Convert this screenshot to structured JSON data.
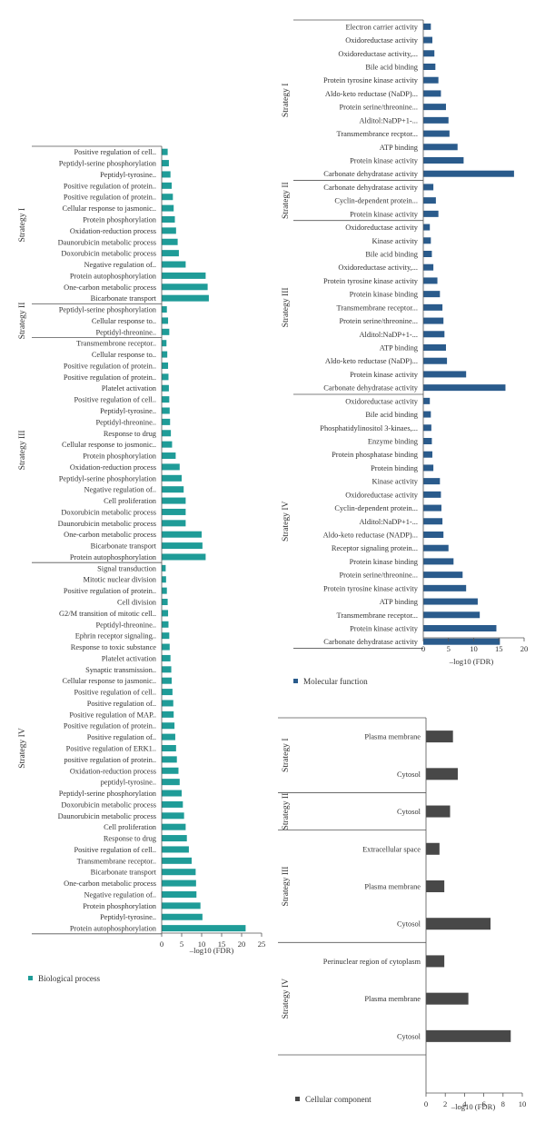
{
  "chart_data": [
    {
      "type": "bar",
      "orientation": "horizontal",
      "xlabel": "–log10 (FDR)",
      "xlim": [
        0,
        25
      ],
      "xticks": [
        0,
        5,
        10,
        15,
        20,
        25
      ],
      "legend": "Biological process",
      "color": "#1f9c98",
      "groups": [
        {
          "label": "Strategy I",
          "categories": [
            "Positive regulation of cell..",
            "Peptidyl-serine phosphorylation",
            "Peptidyl-tyrosine..",
            "Positive regulation of protein..",
            "Positive regulation of protein..",
            "Cellular response to jasmonic..",
            "Protein phosphorylation",
            "Oxidation-reduction process",
            "Daunorubicin metabolic process",
            "Doxorubicin metabolic process",
            "Negative regulation of..",
            "Protein autophosphorylation",
            "One-carbon metabolic process",
            "Bicarbonate transport"
          ],
          "values": [
            1.5,
            1.8,
            2.2,
            2.5,
            2.8,
            3.0,
            3.3,
            3.6,
            4.0,
            4.3,
            6.0,
            11.0,
            11.5,
            11.8
          ]
        },
        {
          "label": "Strategy II",
          "categories": [
            "Peptidyl-serine phosphorylation",
            "Cellular response to..",
            "Peptidyl-threonine.."
          ],
          "values": [
            1.3,
            1.6,
            1.9
          ]
        },
        {
          "label": "Strategy III",
          "categories": [
            "Transmembrone receptor..",
            "Cellular response to..",
            "Positive regulation of protein..",
            "Positive regulation of protein..",
            "Platelet activation",
            "Positive regulation of cell..",
            "Peptidyl-tyrosine..",
            "Peptidyl-threonine..",
            "Response to drug",
            "Cellular response to josmonic..",
            "Protein phosphorylation",
            "Oxidation-reduction process",
            "Peptidyl-serine phosphorylation",
            "Negative regulation of..",
            "Cell proliferation",
            "Doxorubicin metabolic process",
            "Daunorubicin metabolic process",
            "One-carbon metabolic process",
            "Bicarbonate transport",
            "Protein autophosphorylation"
          ],
          "values": [
            1.2,
            1.4,
            1.6,
            1.7,
            1.8,
            1.9,
            2.0,
            2.1,
            2.3,
            2.6,
            3.5,
            4.5,
            5.0,
            5.5,
            6.0,
            6.0,
            6.0,
            10.0,
            10.2,
            11.0
          ]
        },
        {
          "label": "Strategy IV",
          "categories": [
            "Signal transduction",
            "Mitotic nuclear division",
            "Positive regulation of protein..",
            "Cell division",
            "G2/M transition of mitotic cell..",
            "Peptidyl-threonine..",
            "Ephrin receptor signaling..",
            "Response to toxic substance",
            "Platelet activation",
            "Synaptic transmission..",
            "Cellular response to jasmonic..",
            "Positive regulation of cell..",
            "Positive regulation of..",
            "Positive regulation of MAP..",
            "Positive regulation of protein..",
            "Positive regulation of..",
            "Positive regulation of ERK1..",
            "positive regulation of protein..",
            "Oxidation-reduction process",
            "peptidyl-tyrosine..",
            "Peptidyl-serine phosphorylation",
            "Doxorubicin metabolic process",
            "Daunorubicin metabolic process",
            "Cell proliferation",
            "Response to drug",
            "Positive regulation of cell..",
            "Transmembrane receptor..",
            "Bicarbonate transport",
            "One-carbon metabolic process",
            "Negative regulation of..",
            "Protein phosphorylation",
            "Peptidyl-tyrosine..",
            "Protein autophosphorylation"
          ],
          "values": [
            1.0,
            1.1,
            1.3,
            1.5,
            1.6,
            1.7,
            1.9,
            2.0,
            2.2,
            2.4,
            2.5,
            2.7,
            2.9,
            3.0,
            3.2,
            3.4,
            3.6,
            3.8,
            4.2,
            4.5,
            5.0,
            5.3,
            5.6,
            6.0,
            6.3,
            6.8,
            7.5,
            8.5,
            8.6,
            8.7,
            9.7,
            10.2,
            21.0
          ]
        }
      ]
    },
    {
      "type": "bar",
      "orientation": "horizontal",
      "xlabel": "–log10 (FDR)",
      "xlim": [
        0,
        20
      ],
      "xticks": [
        0,
        5,
        10,
        15,
        20
      ],
      "legend": "Molecular function",
      "color": "#2a5b8c",
      "groups": [
        {
          "label": "Strategy I",
          "categories": [
            "Electron carrier activity",
            "Oxidoreductase activity",
            "Oxidoreductase activity,...",
            "Bile acid binding",
            "Protein tyrosine kinase activity",
            "Aldo-keto reductase (NaDP)...",
            "Protein serine/threonine...",
            "Alditol:NaDP+1-...",
            "Transmembrance recptor...",
            "ATP binding",
            "Protein kinase activity",
            "Carbonate dehydratase activity"
          ],
          "values": [
            1.5,
            1.8,
            2.2,
            2.4,
            3.0,
            3.5,
            4.5,
            5.0,
            5.2,
            6.8,
            8.0,
            18.0
          ]
        },
        {
          "label": "Strategy II",
          "categories": [
            "Carbonate dehydratase activity",
            "Cyclin-dependent protein...",
            "Protein kinase activity"
          ],
          "values": [
            2.0,
            2.5,
            3.0
          ]
        },
        {
          "label": "Strategy III",
          "categories": [
            "Oxidoreductase activity",
            "Kinase activity",
            "Bile acid binding",
            "Oxidoreductase activity,...",
            "Protein tyrosine kinase activity",
            "Protein kinase binding",
            "Transmembrane receptor...",
            "Protein serine/threonine...",
            "Alditol:NaDP+1-...",
            "ATP binding",
            "Aldo-keto reductase (NaDP)...",
            "Protein kinase activity",
            "Carbonate dehydratase activity"
          ],
          "values": [
            1.3,
            1.5,
            1.7,
            2.0,
            2.8,
            3.3,
            3.8,
            4.0,
            4.2,
            4.5,
            4.7,
            8.5,
            16.3
          ]
        },
        {
          "label": "Strategy IV",
          "categories": [
            "Oxidoreductase activity",
            "Bile acid binding",
            "Phosphatidylinositol 3-kinaes,...",
            "Enzyme binding",
            "Protein phosphatase binding",
            "Protein binding",
            "Kinase activity",
            "Oxidoreductase activity",
            "Cyclin-dependent protein...",
            "Alditol:NaDP+1-...",
            "Aldo-keto reductase (NADP)...",
            "Receptor signaling protein...",
            "Protein kinase binding",
            "Protein serine/threonine...",
            "Protein tyrosine kinase activity",
            "ATP binding",
            "Transmembrane receptor...",
            "Protein kinase activity",
            "Carbonate dehydratase activity"
          ],
          "values": [
            1.3,
            1.5,
            1.6,
            1.7,
            1.8,
            2.0,
            3.3,
            3.5,
            3.6,
            3.8,
            4.0,
            5.0,
            6.0,
            7.8,
            8.5,
            10.8,
            11.2,
            14.5,
            15.2
          ]
        }
      ]
    },
    {
      "type": "bar",
      "orientation": "horizontal",
      "xlabel": "–log10 (FDR)",
      "xlim": [
        0,
        10
      ],
      "xticks": [
        0,
        2,
        4,
        6,
        8,
        10
      ],
      "legend": "Cellular component",
      "color": "#484848",
      "groups": [
        {
          "label": "Strategy I",
          "categories": [
            "Plasma membrane",
            "Cytosol"
          ],
          "values": [
            2.8,
            3.3
          ]
        },
        {
          "label": "Strategy II",
          "categories": [
            "Cytosol"
          ],
          "values": [
            2.5
          ]
        },
        {
          "label": "Strategy III",
          "categories": [
            "Extracellular space",
            "Plasma membrane",
            "Cytosol"
          ],
          "values": [
            1.4,
            1.9,
            6.7
          ]
        },
        {
          "label": "Strategy IV",
          "categories": [
            "Perinuclear region of cytoplasm",
            "Plasma membrane",
            "Cytosol"
          ],
          "values": [
            1.9,
            4.4,
            8.8
          ]
        }
      ]
    }
  ]
}
